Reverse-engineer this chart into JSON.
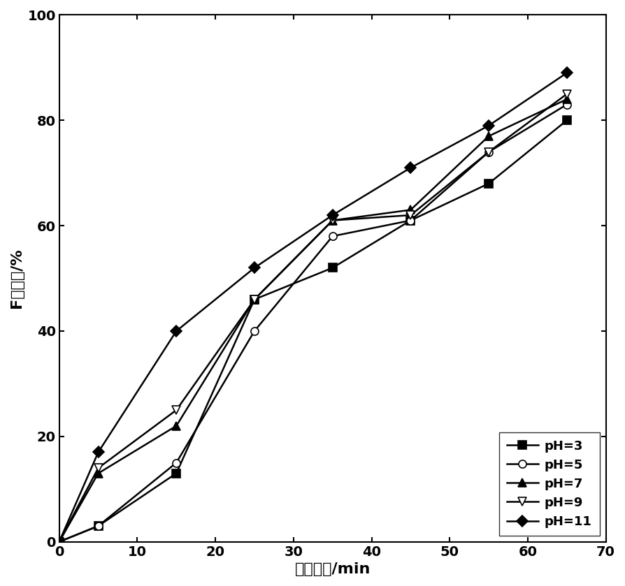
{
  "x": [
    0,
    5,
    15,
    25,
    35,
    45,
    55,
    65
  ],
  "pH3": [
    0,
    3,
    13,
    46,
    52,
    61,
    68,
    80
  ],
  "pH5": [
    0,
    3,
    15,
    40,
    58,
    61,
    74,
    83
  ],
  "pH7": [
    0,
    13,
    22,
    46,
    61,
    63,
    77,
    84
  ],
  "pH9": [
    0,
    14,
    25,
    46,
    61,
    62,
    74,
    85
  ],
  "pH11": [
    0,
    17,
    40,
    52,
    62,
    71,
    79,
    89
  ],
  "xlabel": "电解时间/min",
  "ylabel": "F去除率/%",
  "xlim": [
    0,
    70
  ],
  "ylim": [
    0,
    100
  ],
  "xticks": [
    0,
    10,
    20,
    30,
    40,
    50,
    60,
    70
  ],
  "yticks": [
    0,
    20,
    40,
    60,
    80,
    100
  ],
  "line_color": "#000000",
  "figsize": [
    8.94,
    8.39
  ],
  "dpi": 100,
  "tick_fontsize": 14,
  "label_fontsize": 16,
  "legend_fontsize": 13
}
